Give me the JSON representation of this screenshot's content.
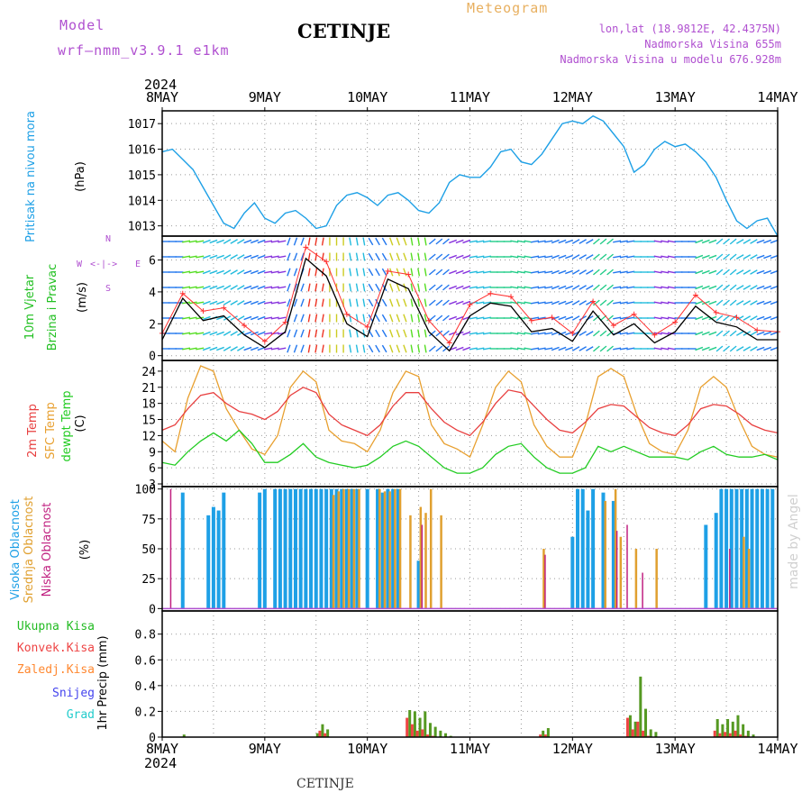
{
  "header": {
    "model_label": "Model",
    "model_name": "wrf—nmm_v3.9.1 e1km",
    "title": "CETINJE",
    "meteogram_label": "Meteogram",
    "lonlat": "lon,lat (18.9812E, 42.4375N)",
    "altitude": "Nadmorska Visina 655m",
    "model_altitude": "Nadmorska Visina u modelu 676.928m",
    "year_top": "2024",
    "year_bottom": "2024",
    "footer_station": "CETINJE",
    "watermark": "made by Angel"
  },
  "colors": {
    "pressure": "#1ea0e6",
    "wind_label": "#22c022",
    "wind_speed": "#000000",
    "wind_gust": "#ff3030",
    "temp_2m": "#e84040",
    "temp_sfc": "#e8a030",
    "dewpoint": "#22cc22",
    "cloud_high": "#1ea0e6",
    "cloud_mid": "#e0a030",
    "cloud_low": "#c02080",
    "precip_total": "#44bb44",
    "precip_conv": "#ee4444",
    "precip_frozen": "#ff8830",
    "snow": "#4444ee",
    "graupel": "#22cccc",
    "purple_text": "#b050d0"
  },
  "axes": {
    "x_ticks": [
      "8MAY",
      "9MAY",
      "10MAY",
      "11MAY",
      "12MAY",
      "13MAY",
      "14MAY"
    ]
  },
  "chart_data": [
    {
      "type": "line",
      "panel": "pressure",
      "ylabel_name": "Pritisak na nivou mora",
      "ylabel_unit": "(hPa)",
      "yticks": [
        1013,
        1014,
        1015,
        1016,
        1017
      ],
      "ylim": [
        1012.6,
        1017.5
      ],
      "grid": true,
      "x": [
        0,
        0.1,
        0.2,
        0.3,
        0.4,
        0.5,
        0.6,
        0.7,
        0.8,
        0.9,
        1.0,
        1.1,
        1.2,
        1.3,
        1.4,
        1.5,
        1.6,
        1.7,
        1.8,
        1.9,
        2.0,
        2.1,
        2.2,
        2.3,
        2.4,
        2.5,
        2.6,
        2.7,
        2.8,
        2.9,
        3.0,
        3.1,
        3.2,
        3.3,
        3.4,
        3.5,
        3.6,
        3.7,
        3.8,
        3.9,
        4.0,
        4.1,
        4.2,
        4.3,
        4.4,
        4.5,
        4.6,
        4.7,
        4.8,
        4.9,
        5.0,
        5.1,
        5.2,
        5.3,
        5.4,
        5.5,
        5.6,
        5.7,
        5.8,
        5.9,
        6.0
      ],
      "series": [
        {
          "values": [
            1015.9,
            1016.0,
            1015.6,
            1015.2,
            1014.5,
            1013.8,
            1013.1,
            1012.9,
            1013.5,
            1013.9,
            1013.3,
            1013.1,
            1013.5,
            1013.6,
            1013.3,
            1012.9,
            1013.0,
            1013.8,
            1014.2,
            1014.3,
            1014.1,
            1013.8,
            1014.2,
            1014.3,
            1014.0,
            1013.6,
            1013.5,
            1013.9,
            1014.7,
            1015.0,
            1014.9,
            1014.9,
            1015.3,
            1015.9,
            1016.0,
            1015.5,
            1015.4,
            1015.8,
            1016.4,
            1017.0,
            1017.1,
            1017.0,
            1017.3,
            1017.1,
            1016.6,
            1016.1,
            1015.1,
            1015.4,
            1016.0,
            1016.3,
            1016.1,
            1016.2,
            1015.9,
            1015.5,
            1014.9,
            1014.0,
            1013.2,
            1012.9,
            1013.2,
            1013.3,
            1012.6
          ]
        }
      ]
    },
    {
      "type": "line",
      "panel": "wind",
      "ylabel_name": "10m Vjetar",
      "ylabel_name2": "Brzina i Pravac",
      "ylabel_unit": "(m/s)",
      "compass": "N",
      "compass_w": "W",
      "compass_e": "E",
      "compass_s": "S",
      "yticks": [
        0,
        2,
        4,
        6
      ],
      "ylim": [
        -0.3,
        7.5
      ],
      "grid": true,
      "x": [
        0,
        0.2,
        0.4,
        0.6,
        0.8,
        1.0,
        1.2,
        1.4,
        1.6,
        1.8,
        2.0,
        2.2,
        2.4,
        2.6,
        2.8,
        3.0,
        3.2,
        3.4,
        3.6,
        3.8,
        4.0,
        4.2,
        4.4,
        4.6,
        4.8,
        5.0,
        5.2,
        5.4,
        5.6,
        5.8,
        6.0
      ],
      "series": [
        {
          "name": "speed",
          "values": [
            1.0,
            3.6,
            2.2,
            2.5,
            1.3,
            0.5,
            1.5,
            6.1,
            5.0,
            2.0,
            1.2,
            4.8,
            4.2,
            1.5,
            0.3,
            2.5,
            3.3,
            3.1,
            1.5,
            1.7,
            0.9,
            2.8,
            1.3,
            2.0,
            0.8,
            1.5,
            3.1,
            2.1,
            1.8,
            1.0,
            1.0
          ]
        },
        {
          "name": "gust",
          "values": [
            1.4,
            3.9,
            2.8,
            3.0,
            1.9,
            0.9,
            2.1,
            6.8,
            5.9,
            2.6,
            1.8,
            5.3,
            5.1,
            2.2,
            0.8,
            3.2,
            3.9,
            3.7,
            2.2,
            2.4,
            1.4,
            3.4,
            1.9,
            2.6,
            1.3,
            2.1,
            3.8,
            2.7,
            2.4,
            1.6,
            1.5
          ]
        }
      ],
      "direction_deg": [
        270,
        260,
        250,
        240,
        250,
        260,
        200,
        190,
        180,
        170,
        150,
        160,
        170,
        230,
        250,
        260,
        270,
        280,
        260,
        250,
        240,
        230,
        260,
        270,
        280,
        270,
        250,
        230,
        240,
        250,
        260
      ]
    },
    {
      "type": "line",
      "panel": "temperature",
      "ylabel_name": "2m Temp",
      "ylabel_name2": "SFC Temp",
      "ylabel_name3": "dewpt Temp",
      "ylabel_unit": "(C)",
      "yticks": [
        3,
        6,
        9,
        12,
        15,
        18,
        21,
        24
      ],
      "ylim": [
        2.5,
        26
      ],
      "grid": true,
      "x": [
        0,
        0.125,
        0.25,
        0.375,
        0.5,
        0.625,
        0.75,
        0.875,
        1.0,
        1.125,
        1.25,
        1.375,
        1.5,
        1.625,
        1.75,
        1.875,
        2.0,
        2.125,
        2.25,
        2.375,
        2.5,
        2.625,
        2.75,
        2.875,
        3.0,
        3.125,
        3.25,
        3.375,
        3.5,
        3.625,
        3.75,
        3.875,
        4.0,
        4.125,
        4.25,
        4.375,
        4.5,
        4.625,
        4.75,
        4.875,
        5.0,
        5.125,
        5.25,
        5.375,
        5.5,
        5.625,
        5.75,
        5.875,
        6.0
      ],
      "series": [
        {
          "name": "2m",
          "values": [
            13,
            14,
            17,
            19.5,
            20,
            18,
            16.5,
            16,
            15,
            16.5,
            19.5,
            21,
            20,
            16,
            14,
            13,
            12,
            14,
            17.5,
            20,
            20,
            17,
            14.5,
            13,
            12,
            14.5,
            18,
            20.5,
            20,
            17.5,
            15,
            13,
            12.5,
            14.5,
            17,
            17.8,
            17.5,
            15.5,
            13.5,
            12.5,
            12,
            14,
            17,
            17.8,
            17.5,
            16,
            14,
            13,
            12.5
          ]
        },
        {
          "name": "sfc",
          "values": [
            11,
            9,
            19,
            25,
            24,
            17,
            13,
            9.5,
            8.5,
            12,
            21,
            24,
            22,
            13,
            11,
            10.5,
            9,
            13,
            20,
            24,
            23,
            14,
            10.5,
            9.5,
            8,
            14,
            21,
            24,
            22,
            14,
            10,
            8,
            8,
            14,
            23,
            24.5,
            23,
            16,
            10.5,
            9,
            8.5,
            13,
            21,
            23,
            21,
            15,
            10,
            8.5,
            8
          ]
        },
        {
          "name": "dewpt",
          "values": [
            7,
            6.5,
            9,
            11,
            12.5,
            11,
            13,
            10.5,
            7,
            7,
            8.5,
            10.5,
            8,
            7,
            6.5,
            6,
            6.5,
            8,
            10,
            11,
            10,
            8,
            6,
            5,
            5,
            6,
            8.5,
            10,
            10.5,
            8,
            6,
            5,
            5,
            6,
            10,
            9,
            10,
            9,
            8,
            8,
            8,
            7.5,
            9,
            10,
            8.5,
            8,
            8,
            8.5,
            7.5
          ]
        }
      ]
    },
    {
      "type": "bar",
      "panel": "clouds",
      "ylabel_name": "Visoka Oblacnost",
      "ylabel_name2": "Srednja Oblacnost",
      "ylabel_name3": "Niska Oblacnost",
      "ylabel_unit": "(%)",
      "yticks": [
        0,
        25,
        50,
        75,
        100
      ],
      "ylim": [
        -2,
        102
      ],
      "grid": true,
      "x": [
        0.05,
        0.2,
        0.45,
        0.5,
        0.55,
        0.6,
        0.95,
        1.0,
        1.1,
        1.15,
        1.2,
        1.25,
        1.3,
        1.35,
        1.4,
        1.45,
        1.5,
        1.55,
        1.6,
        1.65,
        1.7,
        1.75,
        1.8,
        1.85,
        1.9,
        2.0,
        2.1,
        2.15,
        2.2,
        2.25,
        2.3,
        2.4,
        2.5,
        2.55,
        2.6,
        2.7,
        2.75,
        2.8,
        2.9,
        3.0,
        3.1,
        3.5,
        3.7,
        3.75,
        4.0,
        4.05,
        4.1,
        4.15,
        4.2,
        4.3,
        4.4,
        4.45,
        4.5,
        4.6,
        4.65,
        4.7,
        4.8,
        5.3,
        5.4,
        5.45,
        5.5,
        5.55,
        5.6,
        5.65,
        5.7,
        5.75,
        5.8,
        5.85,
        5.9,
        5.95
      ],
      "series": [
        {
          "name": "high",
          "values": [
            0,
            97,
            78,
            85,
            82,
            97,
            97,
            100,
            100,
            100,
            100,
            100,
            100,
            100,
            100,
            100,
            100,
            100,
            100,
            100,
            100,
            100,
            100,
            100,
            100,
            100,
            100,
            97,
            100,
            100,
            100,
            0,
            40,
            0,
            0,
            0,
            0,
            0,
            0,
            0,
            0,
            0,
            0,
            0,
            60,
            100,
            100,
            82,
            100,
            97,
            90,
            0,
            0,
            0,
            0,
            0,
            0,
            70,
            80,
            100,
            100,
            100,
            100,
            100,
            100,
            100,
            100,
            100,
            100,
            100
          ]
        },
        {
          "name": "mid",
          "values": [
            0,
            0,
            0,
            0,
            0,
            0,
            0,
            0,
            0,
            0,
            0,
            0,
            0,
            0,
            0,
            0,
            0,
            0,
            0,
            95,
            98,
            100,
            100,
            100,
            100,
            0,
            100,
            98,
            98,
            100,
            100,
            78,
            85,
            80,
            100,
            78,
            0,
            0,
            0,
            0,
            0,
            0,
            50,
            0,
            0,
            0,
            0,
            0,
            0,
            90,
            100,
            60,
            0,
            50,
            0,
            0,
            50,
            0,
            0,
            0,
            0,
            0,
            0,
            60,
            50,
            0,
            0,
            0,
            0,
            0
          ]
        },
        {
          "name": "low",
          "values": [
            100,
            0,
            0,
            0,
            0,
            0,
            0,
            0,
            0,
            0,
            0,
            0,
            0,
            0,
            0,
            0,
            0,
            0,
            0,
            0,
            0,
            0,
            0,
            0,
            0,
            0,
            0,
            0,
            0,
            0,
            0,
            0,
            70,
            0,
            0,
            0,
            0,
            0,
            0,
            0,
            0,
            0,
            45,
            0,
            0,
            0,
            0,
            0,
            0,
            0,
            65,
            0,
            70,
            0,
            30,
            0,
            0,
            0,
            0,
            0,
            50,
            0,
            0,
            0,
            0,
            0,
            0,
            0,
            0,
            0
          ]
        }
      ]
    },
    {
      "type": "bar",
      "panel": "precip",
      "legend": [
        "Ukupna Kisa",
        "Konvek.Kisa",
        "Zaledj.Kisa",
        "Snijeg",
        "Grad"
      ],
      "ylabel_name": "1hr Precip (mm)",
      "yticks": [
        0,
        0.2,
        0.4,
        0.6,
        0.8
      ],
      "ylim": [
        0,
        0.98
      ],
      "grid": true,
      "x": [
        0.2,
        1.5,
        1.55,
        1.6,
        2.4,
        2.45,
        2.5,
        2.55,
        2.6,
        2.65,
        2.7,
        2.75,
        2.8,
        3.7,
        3.75,
        4.55,
        4.6,
        4.65,
        4.7,
        4.75,
        4.8,
        5.4,
        5.45,
        5.5,
        5.55,
        5.6,
        5.65,
        5.7,
        5.75
      ],
      "series": [
        {
          "name": "total",
          "values": [
            0.02,
            0.03,
            0.1,
            0.06,
            0.21,
            0.2,
            0.15,
            0.2,
            0.11,
            0.08,
            0.05,
            0.03,
            0.01,
            0.05,
            0.07,
            0.17,
            0.12,
            0.47,
            0.22,
            0.06,
            0.04,
            0.14,
            0.1,
            0.14,
            0.12,
            0.17,
            0.1,
            0.05,
            0.02
          ]
        },
        {
          "name": "conv",
          "values": [
            0,
            0,
            0.05,
            0.03,
            0.15,
            0.1,
            0.05,
            0.06,
            0.02,
            0.01,
            0,
            0,
            0,
            0.02,
            0.02,
            0.15,
            0.06,
            0.12,
            0.05,
            0.01,
            0,
            0.05,
            0.03,
            0.04,
            0.03,
            0.05,
            0.02,
            0.01,
            0
          ]
        }
      ]
    }
  ]
}
